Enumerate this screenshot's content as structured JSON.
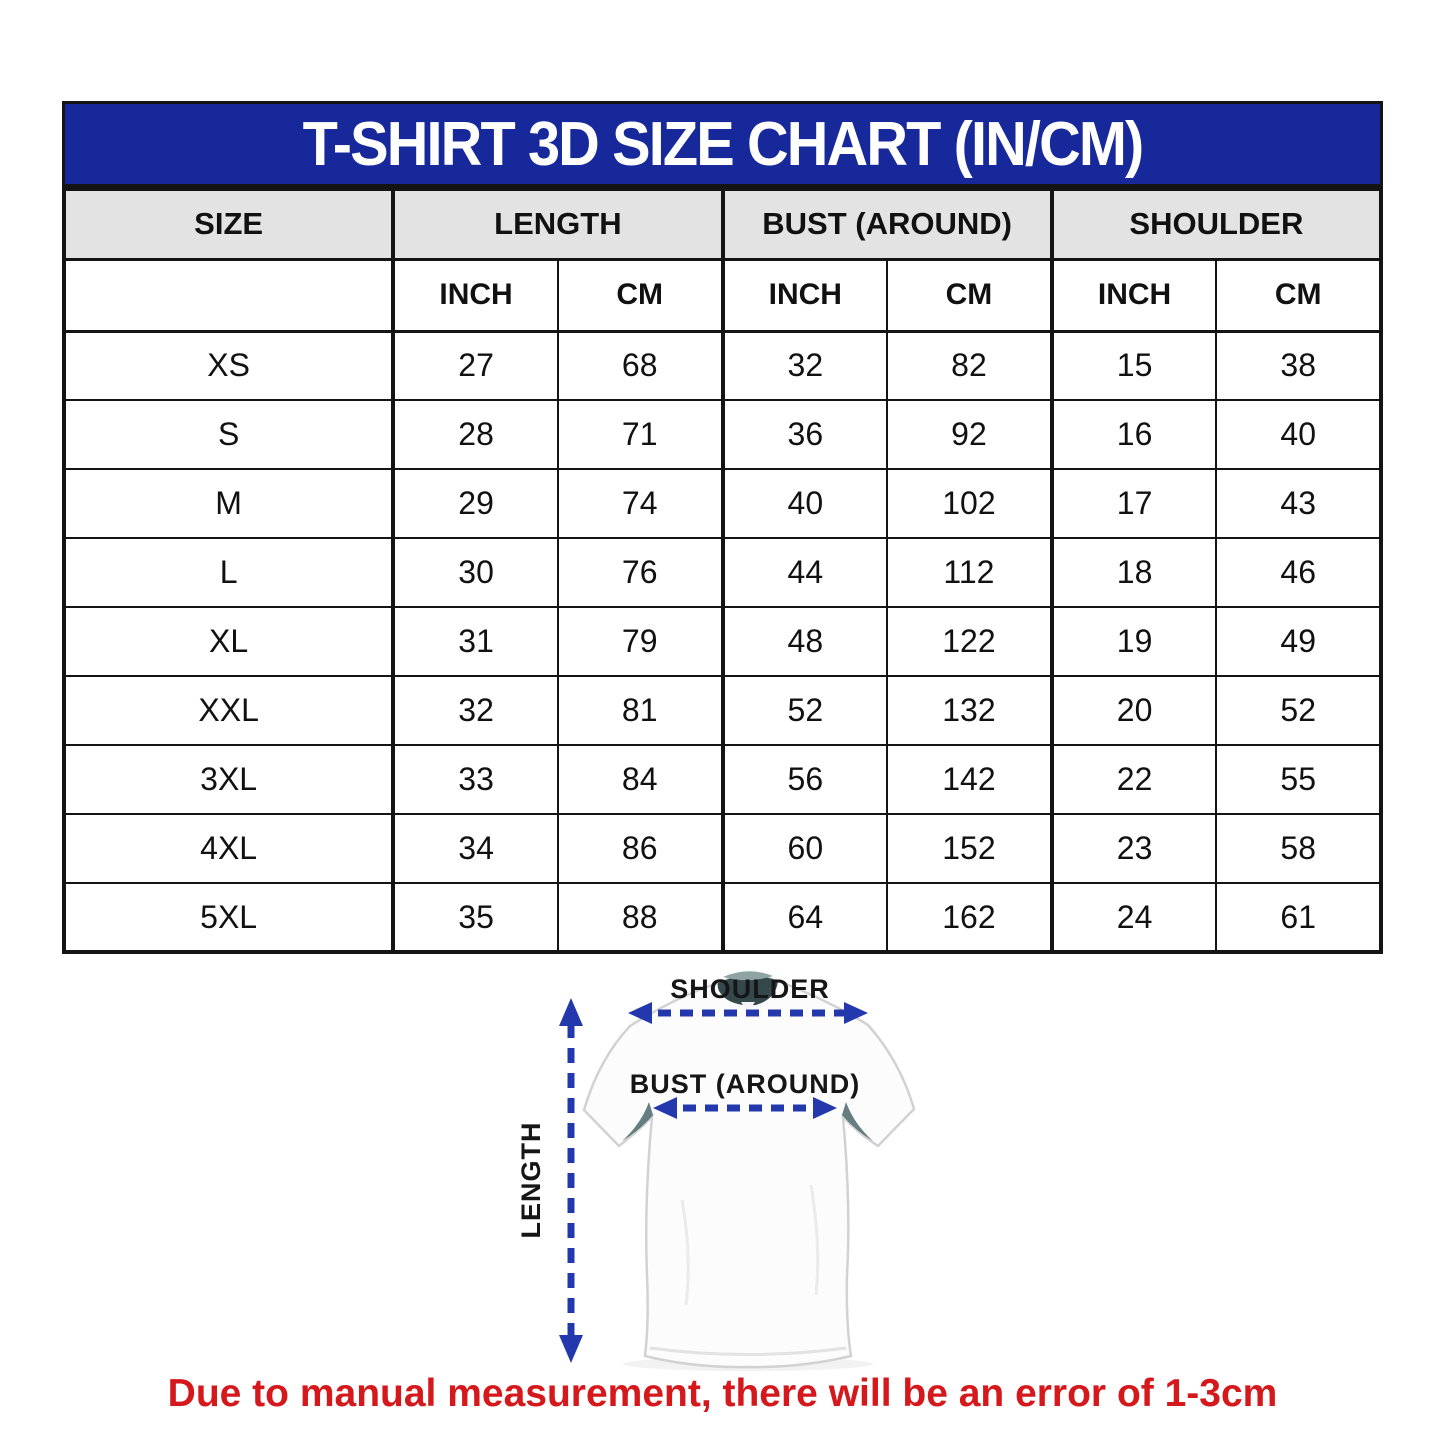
{
  "banner": {
    "title": "T-SHIRT 3D SIZE CHART (IN/CM)",
    "bg_color": "#17289B",
    "text_color": "#FFFFFF"
  },
  "table": {
    "group_headers": [
      "SIZE",
      "LENGTH",
      "BUST (AROUND)",
      "SHOULDER"
    ],
    "sub_headers": [
      "INCH",
      "CM",
      "INCH",
      "CM",
      "INCH",
      "CM"
    ],
    "header_bg_color": "#E3E3E3",
    "rows": [
      {
        "size": "XS",
        "length_inch": "27",
        "length_cm": "68",
        "bust_inch": "32",
        "bust_cm": "82",
        "shoulder_inch": "15",
        "shoulder_cm": "38"
      },
      {
        "size": "S",
        "length_inch": "28",
        "length_cm": "71",
        "bust_inch": "36",
        "bust_cm": "92",
        "shoulder_inch": "16",
        "shoulder_cm": "40"
      },
      {
        "size": "M",
        "length_inch": "29",
        "length_cm": "74",
        "bust_inch": "40",
        "bust_cm": "102",
        "shoulder_inch": "17",
        "shoulder_cm": "43"
      },
      {
        "size": "L",
        "length_inch": "30",
        "length_cm": "76",
        "bust_inch": "44",
        "bust_cm": "112",
        "shoulder_inch": "18",
        "shoulder_cm": "46"
      },
      {
        "size": "XL",
        "length_inch": "31",
        "length_cm": "79",
        "bust_inch": "48",
        "bust_cm": "122",
        "shoulder_inch": "19",
        "shoulder_cm": "49"
      },
      {
        "size": "XXL",
        "length_inch": "32",
        "length_cm": "81",
        "bust_inch": "52",
        "bust_cm": "132",
        "shoulder_inch": "20",
        "shoulder_cm": "52"
      },
      {
        "size": "3XL",
        "length_inch": "33",
        "length_cm": "84",
        "bust_inch": "56",
        "bust_cm": "142",
        "shoulder_inch": "22",
        "shoulder_cm": "55"
      },
      {
        "size": "4XL",
        "length_inch": "34",
        "length_cm": "86",
        "bust_inch": "60",
        "bust_cm": "152",
        "shoulder_inch": "23",
        "shoulder_cm": "58"
      },
      {
        "size": "5XL",
        "length_inch": "35",
        "length_cm": "88",
        "bust_inch": "64",
        "bust_cm": "162",
        "shoulder_inch": "24",
        "shoulder_cm": "61"
      }
    ]
  },
  "diagram": {
    "shoulder_label": "SHOULDER",
    "bust_label": "BUST (AROUND)",
    "length_label": "LENGTH",
    "arrow_color": "#2438AE"
  },
  "footnote": {
    "text": "Due to manual measurement, there will be an error of 1-3cm",
    "color": "#D4181B"
  }
}
